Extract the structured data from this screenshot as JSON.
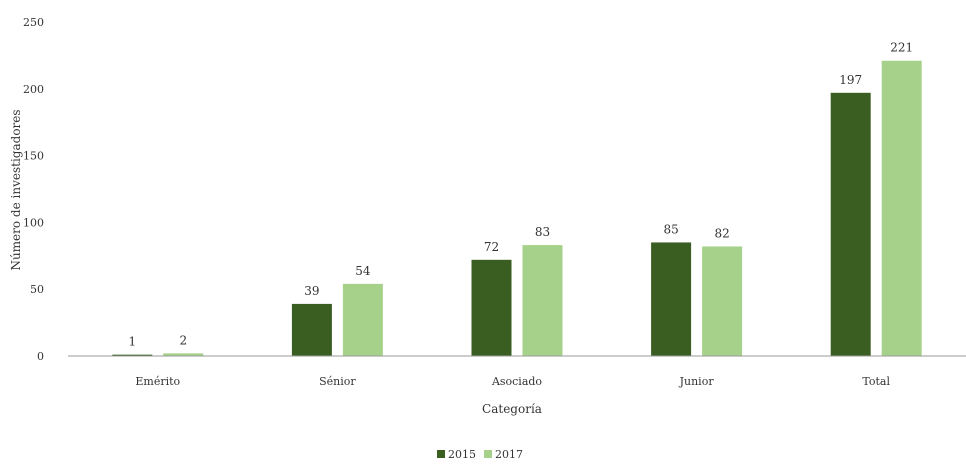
{
  "chart_data": {
    "type": "bar",
    "categories": [
      "Emérito",
      "Sénior",
      "Asociado",
      "Junior",
      "Total"
    ],
    "series": [
      {
        "name": "2015",
        "values": [
          1,
          39,
          72,
          85,
          197
        ],
        "color": "#3a5e22"
      },
      {
        "name": "2017",
        "values": [
          2,
          54,
          83,
          82,
          221
        ],
        "color": "#a6d18a"
      }
    ],
    "title": "",
    "xlabel": "Categoría",
    "ylabel": "Número de investigadores",
    "ylim": [
      0,
      250
    ],
    "yticks": [
      0,
      50,
      100,
      150,
      200,
      250
    ],
    "grid": false,
    "legend_position": "bottom-center"
  }
}
